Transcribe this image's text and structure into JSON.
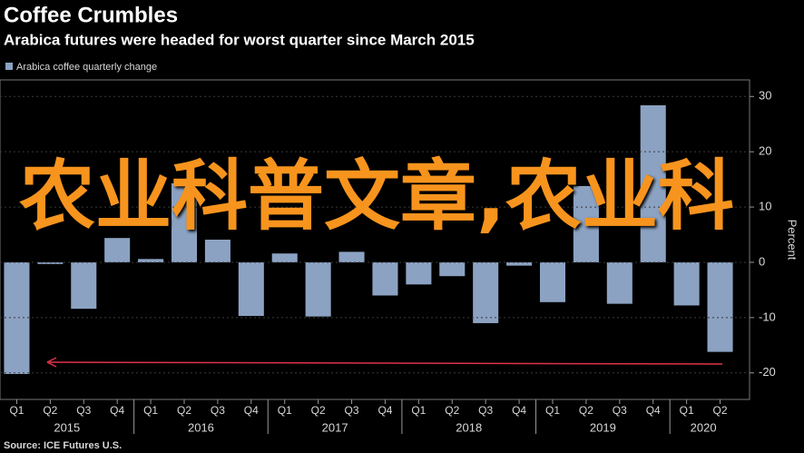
{
  "chart_data": {
    "type": "bar",
    "title": "Coffee Crumbles",
    "subtitle": "Arabica futures were headed for worst quarter since March 2015",
    "legend": "Arabica coffee quarterly change",
    "y_label": "Percent",
    "source": "Source: ICE Futures U.S.",
    "overlay_text": "农业科普文章,农业科",
    "categories": [
      "Q1",
      "Q2",
      "Q3",
      "Q4",
      "Q1",
      "Q2",
      "Q3",
      "Q4",
      "Q1",
      "Q2",
      "Q3",
      "Q4",
      "Q1",
      "Q2",
      "Q3",
      "Q4",
      "Q1",
      "Q2",
      "Q3",
      "Q4",
      "Q1",
      "Q2"
    ],
    "groups": [
      {
        "label": "2015",
        "count": 4
      },
      {
        "label": "2016",
        "count": 4
      },
      {
        "label": "2017",
        "count": 4
      },
      {
        "label": "2018",
        "count": 4
      },
      {
        "label": "2019",
        "count": 4
      },
      {
        "label": "2020",
        "count": 2
      }
    ],
    "values": [
      -20.2,
      -0.3,
      -8.4,
      4.4,
      0.6,
      14.3,
      4.1,
      -9.7,
      1.6,
      -9.8,
      1.9,
      -6,
      -4,
      -2.5,
      -11,
      -0.6,
      -7.2,
      13.8,
      -7.5,
      28.4,
      -7.8,
      -16.2
    ],
    "color": "#8ca2c2",
    "ylim": [
      -24.8,
      33
    ],
    "yticks": [
      30,
      20,
      10,
      0,
      -10,
      -20
    ],
    "y_axis_side": "right"
  }
}
